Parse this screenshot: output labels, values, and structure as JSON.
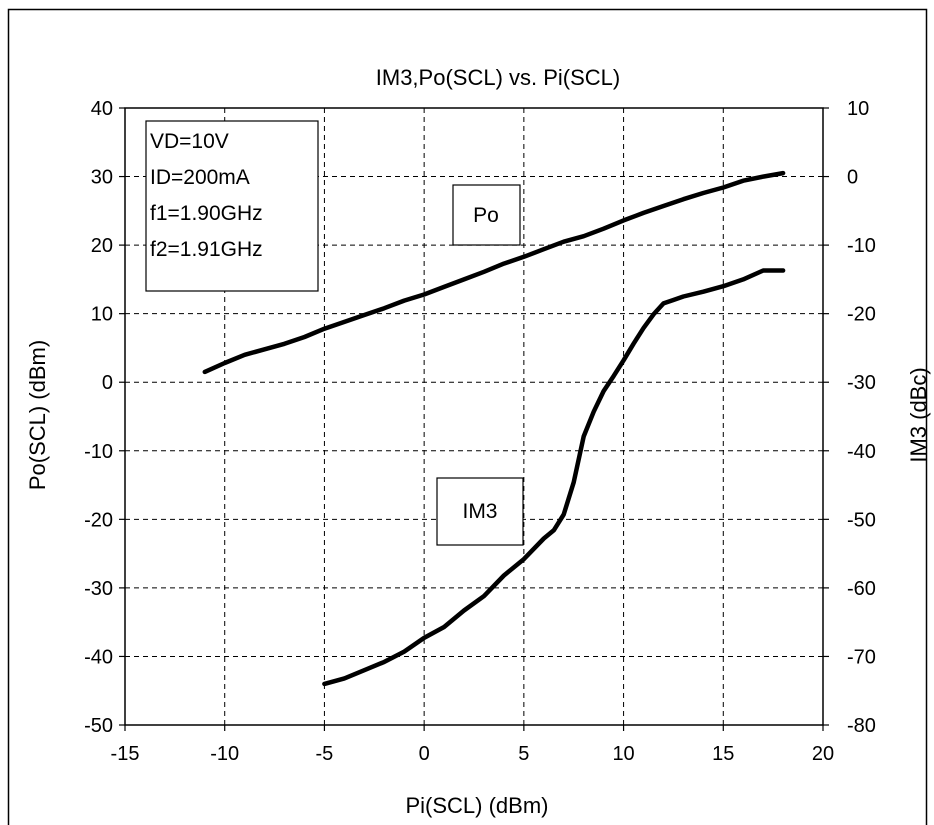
{
  "chart_data": {
    "type": "line",
    "title": "IM3,Po(SCL) vs. Pi(SCL)",
    "xlabel": "Pi(SCL) (dBm)",
    "ylabel": "Po(SCL) (dBm)",
    "y2label": "IM3 (dBc)",
    "xlim": [
      -15,
      20
    ],
    "ylim": [
      -50,
      40
    ],
    "y2lim": [
      -80,
      10
    ],
    "x_ticks": [
      "-15",
      "-10",
      "-5",
      "0",
      "5",
      "10",
      "15",
      "20"
    ],
    "y_ticks": [
      "40",
      "30",
      "20",
      "10",
      "0",
      "-10",
      "-20",
      "-30",
      "-40",
      "-50"
    ],
    "y2_ticks": [
      "10",
      "0",
      "-10",
      "-20",
      "-30",
      "-40",
      "-50",
      "-60",
      "-70",
      "-80"
    ],
    "grid": true,
    "info_box": [
      "VD=10V",
      "ID=200mA",
      "f1=1.90GHz",
      "f2=1.91GHz"
    ],
    "series": [
      {
        "name": "Po",
        "axis": "left",
        "x": [
          -11,
          -10,
          -9,
          -8,
          -7,
          -6,
          -5,
          -4,
          -3,
          -2,
          -1,
          0,
          1,
          2,
          3,
          4,
          5,
          6,
          7,
          8,
          9,
          10,
          11,
          12,
          13,
          14,
          15,
          16,
          17,
          18
        ],
        "y": [
          1.5,
          2.8,
          4.0,
          4.8,
          5.6,
          6.6,
          7.8,
          8.8,
          9.8,
          10.8,
          11.9,
          12.8,
          13.9,
          15.0,
          16.1,
          17.3,
          18.3,
          19.4,
          20.5,
          21.3,
          22.4,
          23.6,
          24.7,
          25.7,
          26.7,
          27.6,
          28.4,
          29.4,
          30.0,
          30.5
        ]
      },
      {
        "name": "IM3",
        "axis": "right",
        "x": [
          -5,
          -4,
          -3,
          -2,
          -1,
          0,
          1,
          2,
          3,
          4,
          5,
          6,
          6.5,
          7,
          7.5,
          8,
          8.5,
          9,
          9.5,
          10,
          10.5,
          11,
          11.5,
          12,
          12.5,
          13,
          14,
          15,
          16,
          17,
          18
        ],
        "y": [
          -74.0,
          -73.2,
          -72.0,
          -70.8,
          -69.3,
          -67.3,
          -65.7,
          -63.3,
          -61.2,
          -58.2,
          -55.8,
          -52.8,
          -51.6,
          -49.3,
          -44.6,
          -37.9,
          -34.3,
          -31.3,
          -29.1,
          -26.8,
          -24.4,
          -22.1,
          -20.1,
          -18.5,
          -18.0,
          -17.5,
          -16.8,
          -16.0,
          -15.0,
          -13.7,
          -13.7
        ]
      }
    ],
    "annotations": [
      "Po",
      "IM3"
    ]
  }
}
